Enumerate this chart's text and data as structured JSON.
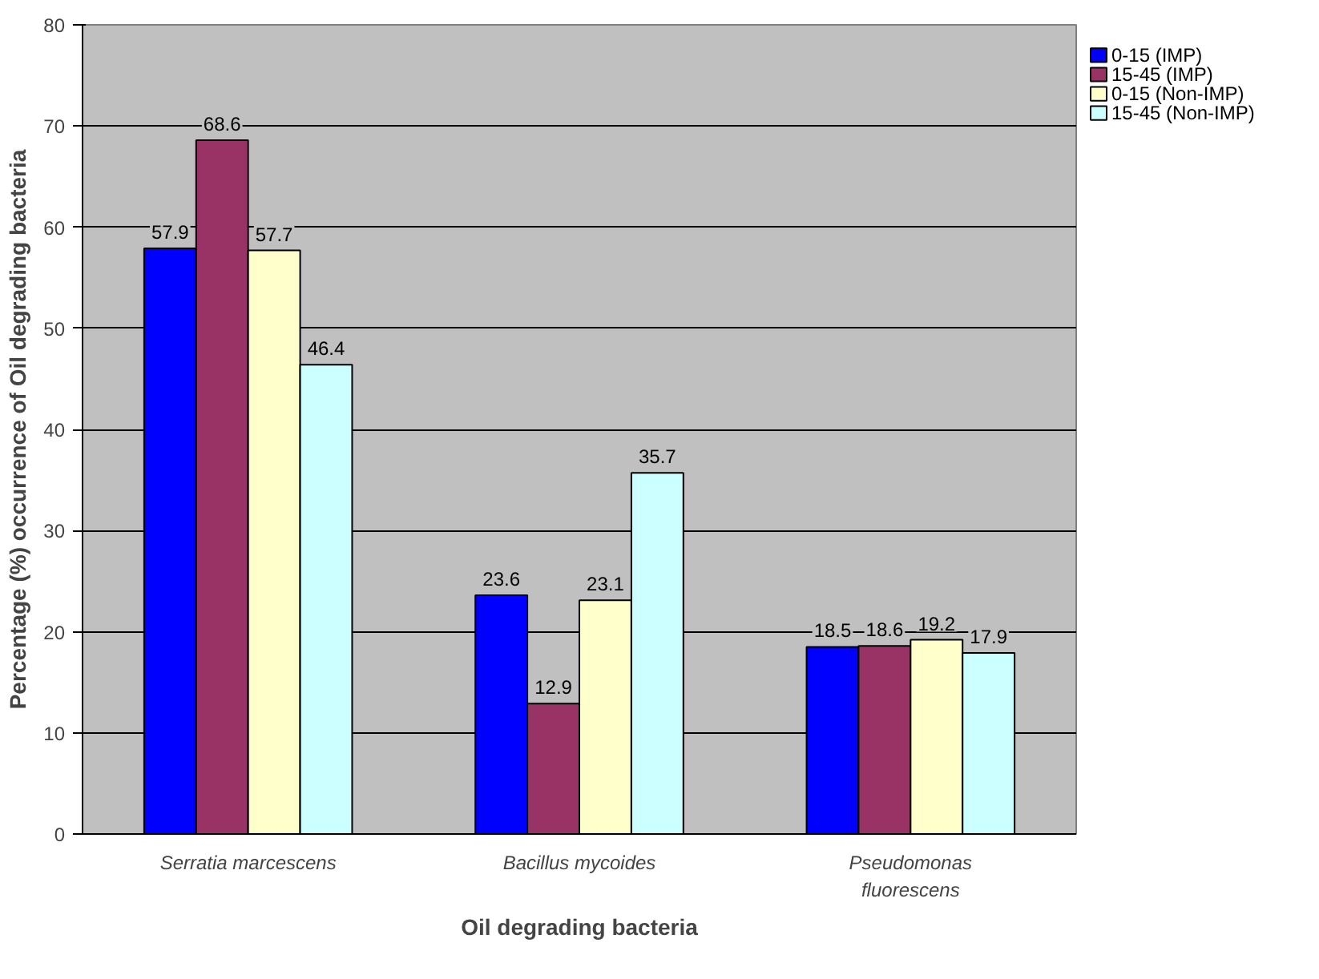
{
  "chart_data": {
    "type": "bar",
    "xlabel": "Oil degrading bacteria",
    "ylabel": "Percentage (%) occurrence of Oil degrading bacteria",
    "categories": [
      "Serratia marcescens",
      "Bacillus mycoides",
      "Pseudomonas fluorescens"
    ],
    "series": [
      {
        "name": "0-15 (IMP)",
        "color": "#0000ff",
        "values": [
          57.9,
          23.6,
          18.5
        ]
      },
      {
        "name": "15-45 (IMP)",
        "color": "#993366",
        "values": [
          68.6,
          12.9,
          18.6
        ]
      },
      {
        "name": "0-15 (Non-IMP)",
        "color": "#ffffcc",
        "values": [
          57.7,
          23.1,
          19.2
        ]
      },
      {
        "name": "15-45 (Non-IMP)",
        "color": "#ccffff",
        "values": [
          46.4,
          35.7,
          17.9
        ]
      }
    ],
    "ylim": [
      0,
      80
    ],
    "yticks": [
      0,
      10,
      20,
      30,
      40,
      50,
      60,
      70,
      80
    ],
    "grid": "y",
    "legend": "top right",
    "data_labels": true
  }
}
